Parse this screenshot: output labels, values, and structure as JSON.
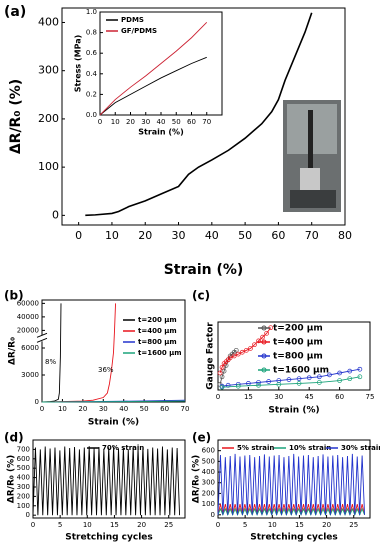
{
  "chart_data": [
    {
      "type": "line",
      "label": "(a)",
      "x_label": "Strain (%)",
      "y_label": "ΔR/R₀ (%)",
      "x": [
        2,
        5,
        10,
        12,
        15,
        20,
        25,
        30,
        33,
        36,
        40,
        45,
        50,
        55,
        58,
        60,
        62,
        65,
        68,
        70
      ],
      "series": [
        {
          "name": null,
          "color": "#000000",
          "values": [
            0,
            1,
            4,
            8,
            18,
            30,
            45,
            60,
            85,
            100,
            115,
            135,
            160,
            190,
            215,
            240,
            280,
            330,
            380,
            420
          ]
        }
      ],
      "xlim": [
        -5,
        80
      ],
      "xticks": [
        0,
        10,
        20,
        30,
        40,
        50,
        60,
        70,
        80
      ],
      "ylim": [
        -20,
        430
      ],
      "yticks": [
        0,
        100,
        200,
        300,
        400
      ]
    },
    {
      "type": "line",
      "x_label": "Strain (%)",
      "y_label": "Stress (MPa)",
      "x": [
        0,
        10,
        20,
        30,
        40,
        50,
        60,
        70
      ],
      "series": [
        {
          "name": "PDMS",
          "color": "#000000",
          "values": [
            0,
            0.12,
            0.2,
            0.28,
            0.36,
            0.43,
            0.5,
            0.56
          ]
        },
        {
          "name": "GF/PDMS",
          "color": "#cc2233",
          "values": [
            0,
            0.15,
            0.27,
            0.38,
            0.5,
            0.62,
            0.75,
            0.9
          ]
        }
      ],
      "xlim": [
        0,
        80
      ],
      "xticks": [
        0,
        10,
        20,
        30,
        40,
        50,
        60,
        70
      ],
      "ylim": [
        0,
        1.0
      ],
      "yticks": [
        {
          "value": 0,
          "label": "0.0"
        },
        0.2,
        0.4,
        0.6,
        0.8,
        {
          "value": 1,
          "label": "1.0"
        }
      ],
      "legend": "upper left"
    },
    {
      "type": "line",
      "label": "(b)",
      "x_label": "Strain (%)",
      "y_label": "ΔR/R₀",
      "series": [
        {
          "name": "t=200 µm",
          "color": "#000000",
          "x": [
            0,
            2,
            4,
            6,
            8,
            8.5,
            9,
            9.3
          ],
          "values": [
            0,
            20,
            50,
            100,
            300,
            1000,
            5000,
            60000
          ]
        },
        {
          "name": "t=400 µm",
          "color": "#e8141c",
          "x": [
            0,
            10,
            20,
            25,
            30,
            32,
            33,
            34,
            35,
            35.5,
            36
          ],
          "values": [
            0,
            50,
            100,
            200,
            500,
            1000,
            2000,
            3500,
            5500,
            20000,
            60000
          ]
        },
        {
          "name": "t=800 µm",
          "color": "#2233cc",
          "x": [
            0,
            10,
            20,
            30,
            40,
            50,
            60,
            70
          ],
          "values": [
            0,
            20,
            40,
            60,
            90,
            120,
            160,
            200
          ]
        },
        {
          "name": "t=1600 µm",
          "color": "#1aa37a",
          "x": [
            0,
            10,
            20,
            30,
            40,
            50,
            60,
            70
          ],
          "values": [
            0,
            10,
            20,
            30,
            45,
            60,
            80,
            100
          ]
        }
      ],
      "annotations": [
        "8%",
        "36%"
      ],
      "xlim": [
        0,
        70
      ],
      "xticks": [
        0,
        10,
        20,
        30,
        40,
        50,
        60,
        70
      ],
      "ylim": [
        0,
        65000
      ],
      "ybreak": [
        6800,
        12000
      ],
      "yticks": [
        0,
        3000,
        6000,
        20000,
        40000,
        60000
      ],
      "legend": "upper right"
    },
    {
      "type": "line",
      "label": "(c)",
      "x_label": "Strain (%)",
      "y_label": "Gauge Factor",
      "markers": true,
      "series": [
        {
          "name": "t=200 µm",
          "color": "#555555",
          "x": [
            1,
            2,
            3,
            4,
            5,
            6,
            7,
            8,
            9
          ],
          "values": [
            2,
            6,
            9,
            12,
            15,
            17,
            18,
            19,
            20
          ]
        },
        {
          "name": "t=400 µm",
          "color": "#e8141c",
          "x": [
            1,
            2,
            3,
            4,
            5,
            6,
            8,
            10,
            12,
            14,
            16,
            18,
            20,
            22,
            24,
            26
          ],
          "values": [
            8,
            11,
            13,
            14,
            15,
            16,
            17,
            18,
            19,
            20,
            21,
            23,
            25,
            27,
            29,
            32
          ]
        },
        {
          "name": "t=800 µm",
          "color": "#2233cc",
          "x": [
            2,
            5,
            10,
            15,
            20,
            25,
            30,
            35,
            40,
            45,
            50,
            55,
            60,
            65,
            70
          ],
          "values": [
            1,
            1.5,
            2,
            2.5,
            3,
            3.5,
            4,
            4.5,
            5,
            5.5,
            6,
            7,
            8,
            9,
            10
          ]
        },
        {
          "name": "t=1600 µm",
          "color": "#1aa37a",
          "x": [
            2,
            10,
            20,
            30,
            40,
            50,
            60,
            65,
            70
          ],
          "values": [
            0.5,
            1,
            1.5,
            2,
            2.5,
            3,
            4,
            5,
            6
          ]
        }
      ],
      "xlim": [
        0,
        75
      ],
      "xticks": [
        0,
        15,
        30,
        45,
        60,
        75
      ],
      "ylim": [
        -1,
        35
      ],
      "legend": "upper center"
    },
    {
      "type": "line",
      "label": "(d)",
      "x_label": "Stretching cycles",
      "y_label": "ΔR/R₀ (%)",
      "x": [
        0,
        0.45,
        0.9,
        1.35,
        1.8,
        2.25,
        2.7,
        3.15,
        3.6,
        4.05,
        4.5,
        4.95,
        5.4,
        5.85,
        6.3,
        6.75,
        7.2,
        7.65,
        8.1,
        8.55,
        9,
        9.45,
        9.9,
        10.35,
        10.8,
        11.25,
        11.7,
        12.15,
        12.6,
        13.05,
        13.5,
        13.95,
        14.4,
        14.85,
        15.3,
        15.75,
        16.2,
        16.65,
        17.1,
        17.55,
        18,
        18.45,
        18.9,
        19.35,
        19.8,
        20.25,
        20.7,
        21.15,
        21.6,
        22.05,
        22.5,
        22.95,
        23.4,
        23.85,
        24.3,
        24.75,
        25.2,
        25.65,
        26.1,
        26.55,
        27
      ],
      "series": [
        {
          "name": "70% strain",
          "color": "#000000",
          "values": [
            0,
            720,
            0,
            700,
            0,
            730,
            0,
            710,
            0,
            720,
            0,
            690,
            0,
            730,
            0,
            715,
            0,
            725,
            0,
            700,
            0,
            720,
            0,
            735,
            0,
            710,
            0,
            725,
            0,
            700,
            0,
            720,
            0,
            730,
            0,
            710,
            0,
            720,
            0,
            700,
            0,
            725,
            0,
            715,
            0,
            730,
            0,
            705,
            0,
            720,
            0,
            710,
            0,
            730,
            0,
            700,
            0,
            720,
            0,
            715,
            0
          ]
        }
      ],
      "xlim": [
        0,
        28
      ],
      "xticks": [
        0,
        5,
        10,
        15,
        20,
        25
      ],
      "ylim": [
        -30,
        800
      ],
      "yticks": [
        0,
        100,
        200,
        300,
        400,
        500,
        600,
        700
      ],
      "legend": "upper center"
    },
    {
      "type": "line",
      "label": "(e)",
      "x_label": "Stretching cycles",
      "y_label": "ΔR/R₀ (%)",
      "x": [
        0,
        0.45,
        0.9,
        1.35,
        1.8,
        2.25,
        2.7,
        3.15,
        3.6,
        4.05,
        4.5,
        4.95,
        5.4,
        5.85,
        6.3,
        6.75,
        7.2,
        7.65,
        8.1,
        8.55,
        9,
        9.45,
        9.9,
        10.35,
        10.8,
        11.25,
        11.7,
        12.15,
        12.6,
        13.05,
        13.5,
        13.95,
        14.4,
        14.85,
        15.3,
        15.75,
        16.2,
        16.65,
        17.1,
        17.55,
        18,
        18.45,
        18.9,
        19.35,
        19.8,
        20.25,
        20.7,
        21.15,
        21.6,
        22.05,
        22.5,
        22.95,
        23.4,
        23.85,
        24.3,
        24.75,
        25.2,
        25.65,
        26.1,
        26.55,
        27
      ],
      "series": [
        {
          "name": "5% strain",
          "color": "#e8141c",
          "values": [
            0,
            100,
            0,
            100,
            0,
            100,
            0,
            100,
            0,
            100,
            0,
            100,
            0,
            100,
            0,
            100,
            0,
            100,
            0,
            100,
            0,
            100,
            0,
            100,
            0,
            100,
            0,
            100,
            0,
            100,
            0,
            100,
            0,
            100,
            0,
            100,
            0,
            100,
            0,
            100,
            0,
            100,
            0,
            100,
            0,
            100,
            0,
            100,
            0,
            100,
            0,
            100,
            0,
            100,
            0,
            100,
            0,
            100,
            0,
            100,
            0
          ]
        },
        {
          "name": "10% strain",
          "color": "#1aa37a",
          "values": [
            0,
            55,
            0,
            55,
            0,
            55,
            0,
            55,
            0,
            55,
            0,
            55,
            0,
            55,
            0,
            55,
            0,
            55,
            0,
            55,
            0,
            55,
            0,
            55,
            0,
            55,
            0,
            55,
            0,
            55,
            0,
            55,
            0,
            55,
            0,
            55,
            0,
            55,
            0,
            55,
            0,
            55,
            0,
            55,
            0,
            55,
            0,
            55,
            0,
            55,
            0,
            55,
            0,
            55,
            0,
            55,
            0,
            55,
            0,
            55,
            0
          ]
        },
        {
          "name": "30% strain",
          "color": "#2233cc",
          "values": [
            0,
            560,
            0,
            540,
            0,
            550,
            0,
            570,
            0,
            545,
            0,
            555,
            0,
            560,
            0,
            540,
            0,
            550,
            0,
            565,
            0,
            545,
            0,
            555,
            0,
            560,
            0,
            540,
            0,
            550,
            0,
            570,
            0,
            545,
            0,
            555,
            0,
            560,
            0,
            540,
            0,
            550,
            0,
            565,
            0,
            545,
            0,
            555,
            0,
            560,
            0,
            540,
            0,
            550,
            0,
            570,
            0,
            545,
            0,
            555,
            0
          ]
        }
      ],
      "xlim": [
        0,
        28
      ],
      "xticks": [
        0,
        5,
        10,
        15,
        20,
        25
      ],
      "ylim": [
        -30,
        700
      ],
      "yticks": [
        0,
        100,
        200,
        300,
        400,
        500,
        600
      ],
      "legend": "top"
    }
  ]
}
